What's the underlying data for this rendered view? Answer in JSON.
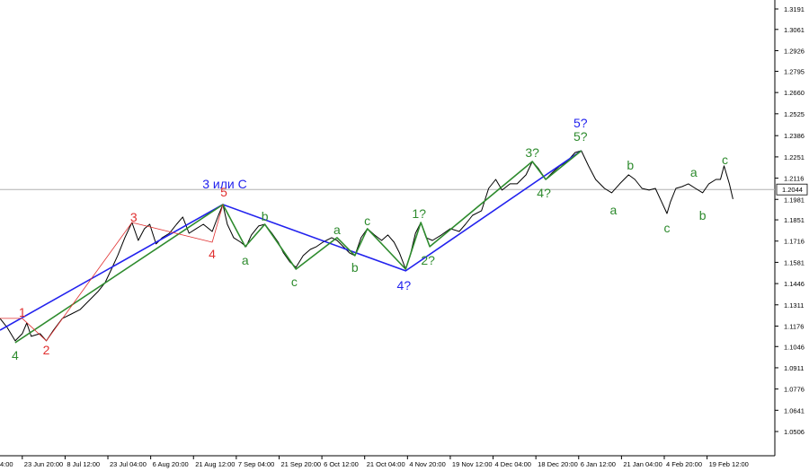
{
  "chart_data": {
    "type": "line",
    "xlim": [
      23,
      892
    ],
    "xticks": [
      {
        "value": 0,
        "label": "4:00"
      },
      {
        "value": 48,
        "label": "23 Jun 20:00"
      },
      {
        "value": 96,
        "label": "8 Jul 12:00"
      },
      {
        "value": 144,
        "label": "23 Jul 04:00"
      },
      {
        "value": 192,
        "label": "6 Aug 20:00"
      },
      {
        "value": 240,
        "label": "21 Aug 12:00"
      },
      {
        "value": 288,
        "label": "7 Sep 04:00"
      },
      {
        "value": 336,
        "label": "21 Sep 20:00"
      },
      {
        "value": 384,
        "label": "6 Oct 12:00"
      },
      {
        "value": 432,
        "label": "21 Oct 04:00"
      },
      {
        "value": 480,
        "label": "4 Nov 20:00"
      },
      {
        "value": 528,
        "label": "19 Nov 12:00"
      },
      {
        "value": 576,
        "label": "4 Dec 04:00"
      },
      {
        "value": 624,
        "label": "18 Dec 20:00"
      },
      {
        "value": 672,
        "label": "6 Jan 12:00"
      },
      {
        "value": 720,
        "label": "21 Jan 04:00"
      },
      {
        "value": 768,
        "label": "4 Feb 20:00"
      },
      {
        "value": 816,
        "label": "19 Feb 12:00"
      }
    ],
    "ylim": [
      1.0352,
      1.3248
    ],
    "yticks": [
      1.3191,
      1.3061,
      1.2926,
      1.2795,
      {
        "value": 1.266,
        "label": "1.2660"
      },
      1.2525,
      1.2386,
      1.2251,
      1.2116,
      1.1981,
      1.1851,
      1.1716,
      1.1581,
      1.1446,
      1.1311,
      1.1176,
      1.1046,
      1.0911,
      1.0776,
      1.0641,
      1.0506
    ],
    "current_price": 1.2044,
    "series": [
      {
        "color": "#000000",
        "x": [
          23,
          31,
          40,
          48,
          53,
          58,
          68,
          75,
          83,
          93,
          103,
          113,
          123,
          133,
          141,
          148,
          155,
          163,
          171,
          178,
          185,
          191,
          198,
          205,
          213,
          221,
          228,
          235,
          243,
          251,
          261,
          268,
          273,
          278,
          285,
          293,
          299,
          305,
          313,
          320,
          328,
          335,
          341,
          348,
          355,
          363,
          371,
          378,
          385,
          395,
          401,
          408,
          415,
          421,
          428,
          435,
          443,
          451,
          458,
          465,
          471,
          478,
          483,
          489,
          495,
          501,
          508,
          518,
          528,
          538,
          545,
          553,
          563,
          571,
          579,
          586,
          595,
          603,
          613,
          620,
          627,
          635,
          643,
          651,
          659,
          668,
          675,
          683,
          691,
          701,
          709,
          718,
          728,
          735,
          743,
          751,
          758,
          765,
          771,
          775,
          781,
          788,
          795,
          803,
          811,
          818,
          826,
          831,
          835,
          841,
          845
        ],
        "values": [
          1.1225,
          1.1168,
          1.1082,
          1.1128,
          1.1196,
          1.1111,
          1.1128,
          1.1082,
          1.115,
          1.1225,
          1.1253,
          1.1282,
          1.1339,
          1.1396,
          1.1453,
          1.1538,
          1.1624,
          1.1738,
          1.1834,
          1.172,
          1.1795,
          1.1823,
          1.1698,
          1.1738,
          1.1766,
          1.1823,
          1.1869,
          1.1766,
          1.1795,
          1.1823,
          1.1777,
          1.188,
          1.1948,
          1.1823,
          1.1738,
          1.1709,
          1.1681,
          1.1755,
          1.1812,
          1.1823,
          1.1766,
          1.1709,
          1.1641,
          1.1584,
          1.1549,
          1.1624,
          1.1663,
          1.1681,
          1.1709,
          1.1738,
          1.172,
          1.1681,
          1.1641,
          1.1624,
          1.1738,
          1.1795,
          1.1755,
          1.172,
          1.1755,
          1.1709,
          1.1641,
          1.1538,
          1.1624,
          1.1766,
          1.1834,
          1.1738,
          1.172,
          1.1755,
          1.1795,
          1.1777,
          1.1823,
          1.188,
          1.1909,
          1.2051,
          1.2108,
          1.204,
          1.208,
          1.208,
          1.2137,
          1.2222,
          1.2176,
          1.2108,
          1.2154,
          1.2194,
          1.2222,
          1.2279,
          1.229,
          1.2194,
          1.2108,
          1.2051,
          1.2023,
          1.208,
          1.2137,
          1.2108,
          1.2051,
          1.204,
          1.2051,
          1.1966,
          1.1891,
          1.1966,
          1.2051,
          1.2062,
          1.208,
          1.2051,
          1.2023,
          1.208,
          1.2108,
          1.2108,
          1.2194,
          1.208,
          1.1983
        ]
      }
    ],
    "wave_lines": [
      {
        "color": "#2222ee",
        "x": [
          23,
          273,
          478,
          675
        ],
        "values": [
          1.115,
          1.1948,
          1.1527,
          1.229
        ]
      },
      {
        "color": "#2e8b2e",
        "x": [
          40,
          273,
          298,
          320,
          355,
          401,
          421,
          435,
          478,
          495,
          505,
          620,
          635,
          675
        ],
        "values": [
          1.1071,
          1.1948,
          1.1681,
          1.1823,
          1.1538,
          1.1738,
          1.1624,
          1.1795,
          1.1538,
          1.1834,
          1.1681,
          1.2222,
          1.2108,
          1.229
        ]
      },
      {
        "color": "#e03030",
        "x": [
          23,
          48,
          75,
          171,
          261,
          273
        ],
        "values": [
          1.1225,
          1.1225,
          1.1082,
          1.1834,
          1.1709,
          1.1948
        ]
      }
    ],
    "wave_labels": [
      {
        "text": "1",
        "x": 48,
        "y": 1.1264,
        "color": "#e03030"
      },
      {
        "text": "2",
        "x": 75,
        "y": 1.1025,
        "color": "#e03030"
      },
      {
        "text": "3",
        "x": 173,
        "y": 1.1869,
        "color": "#e03030"
      },
      {
        "text": "4",
        "x": 261,
        "y": 1.1635,
        "color": "#e03030"
      },
      {
        "text": "5",
        "x": 274,
        "y": 1.2028,
        "color": "#e03030"
      },
      {
        "text": "4",
        "x": 40,
        "y": 1.0991,
        "color": "#2e8b2e"
      },
      {
        "text": "3 или C",
        "x": 275,
        "y": 1.208,
        "color": "#2222ee"
      },
      {
        "text": "a",
        "x": 298,
        "y": 1.1595,
        "color": "#2e8b2e"
      },
      {
        "text": "b",
        "x": 320,
        "y": 1.1874,
        "color": "#2e8b2e"
      },
      {
        "text": "c",
        "x": 353,
        "y": 1.1458,
        "color": "#2e8b2e"
      },
      {
        "text": "a",
        "x": 401,
        "y": 1.1789,
        "color": "#2e8b2e"
      },
      {
        "text": "b",
        "x": 421,
        "y": 1.1549,
        "color": "#2e8b2e"
      },
      {
        "text": "c",
        "x": 435,
        "y": 1.1846,
        "color": "#2e8b2e"
      },
      {
        "text": "1?",
        "x": 493,
        "y": 1.1891,
        "color": "#2e8b2e"
      },
      {
        "text": "2?",
        "x": 503,
        "y": 1.1595,
        "color": "#2e8b2e"
      },
      {
        "text": "4?",
        "x": 476,
        "y": 1.1435,
        "color": "#2222ee"
      },
      {
        "text": "3?",
        "x": 620,
        "y": 1.2279,
        "color": "#2e8b2e"
      },
      {
        "text": "4?",
        "x": 633,
        "y": 1.2023,
        "color": "#2e8b2e"
      },
      {
        "text": "5?",
        "x": 674,
        "y": 1.2467,
        "color": "#2222ee"
      },
      {
        "text": "5?",
        "x": 674,
        "y": 1.2382,
        "color": "#2e8b2e"
      },
      {
        "text": "b",
        "x": 730,
        "y": 1.2199,
        "color": "#2e8b2e"
      },
      {
        "text": "a",
        "x": 711,
        "y": 1.1914,
        "color": "#2e8b2e"
      },
      {
        "text": "a",
        "x": 801,
        "y": 1.2154,
        "color": "#2e8b2e"
      },
      {
        "text": "c",
        "x": 771,
        "y": 1.18,
        "color": "#2e8b2e"
      },
      {
        "text": "b",
        "x": 811,
        "y": 1.188,
        "color": "#2e8b2e"
      },
      {
        "text": "c",
        "x": 836,
        "y": 1.2233,
        "color": "#2e8b2e"
      }
    ]
  }
}
